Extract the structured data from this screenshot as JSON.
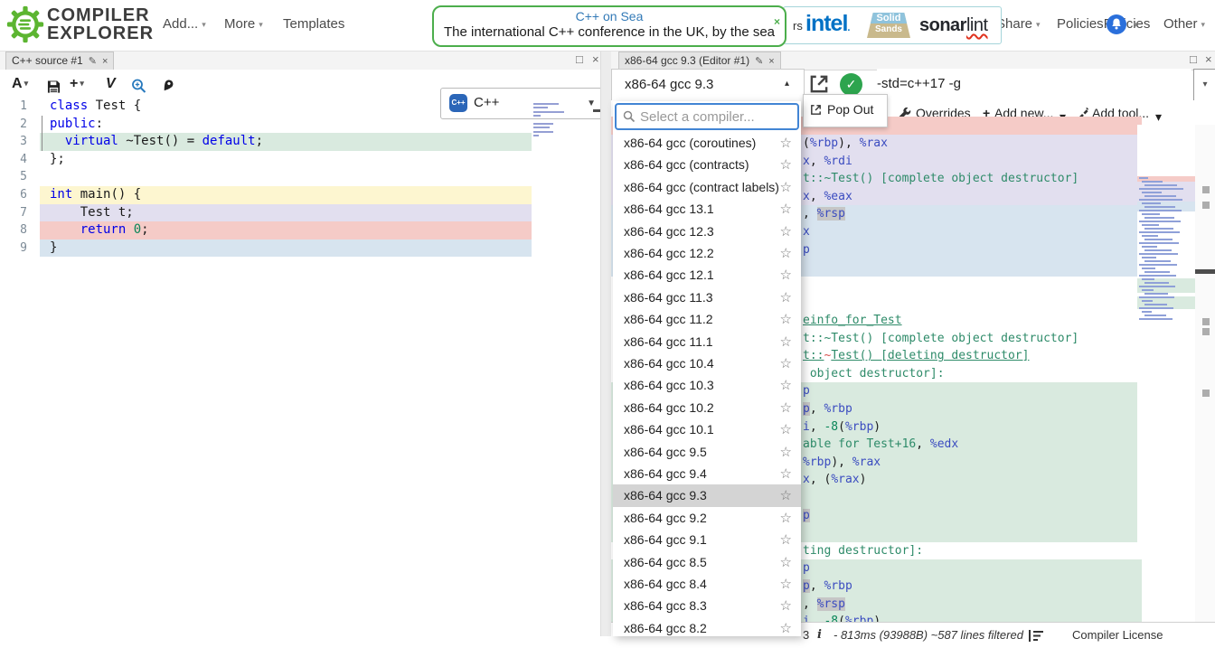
{
  "icons": {
    "caret_down": "▾",
    "caret_up": "▴",
    "caret_solid": "▼",
    "close": "×",
    "maximize": "□",
    "edit": "✎",
    "star": "☆",
    "check": "✓",
    "plus": "+",
    "info": "i",
    "font": "A",
    "vim": "V"
  },
  "nav": {
    "logo_line1": "COMPILER",
    "logo_line2": "EXPLORER",
    "menu_add": "Add...",
    "menu_more": "More",
    "menu_templates": "Templates",
    "banner": {
      "title": "C++ on Sea",
      "subtitle": "The international C++ conference in the UK, by the sea"
    },
    "sponsors": {
      "label_fragment": "rs",
      "intel": "intel",
      "intel_dot": ".",
      "solid_top": "Solid",
      "solid_bottom": "Sands",
      "sonar_bold": "sonar",
      "sonar_light": "lint"
    },
    "menu_share": "Share",
    "menu_policies": "Policies",
    "menu_other": "Other"
  },
  "source_pane": {
    "tab_title": "C++ source #1",
    "language": "C++",
    "language_logo": "C++",
    "lines": [
      {
        "bg": null,
        "tokens": [
          {
            "t": "class",
            "c": "kw"
          },
          {
            "t": " Test {",
            "c": "pl"
          }
        ]
      },
      {
        "bg": null,
        "tokens": [
          {
            "t": "public",
            "c": "kw"
          },
          {
            "t": ":",
            "c": "pl"
          }
        ]
      },
      {
        "bg": "g",
        "tokens": [
          {
            "t": "  ",
            "c": "pl"
          },
          {
            "t": "virtual",
            "c": "kw"
          },
          {
            "t": " ~Test() = ",
            "c": "pl"
          },
          {
            "t": "default",
            "c": "kw"
          },
          {
            "t": ";",
            "c": "pl"
          }
        ]
      },
      {
        "bg": null,
        "tokens": [
          {
            "t": "};",
            "c": "pl"
          }
        ]
      },
      {
        "bg": null,
        "tokens": []
      },
      {
        "bg": "y",
        "tokens": [
          {
            "t": "int",
            "c": "kw"
          },
          {
            "t": " main() {",
            "c": "pl"
          }
        ]
      },
      {
        "bg": "l",
        "tokens": [
          {
            "t": "    Test t;",
            "c": "pl"
          }
        ]
      },
      {
        "bg": "r",
        "tokens": [
          {
            "t": "    ",
            "c": "pl"
          },
          {
            "t": "return",
            "c": "kw"
          },
          {
            "t": " ",
            "c": "pl"
          },
          {
            "t": "0",
            "c": "num"
          },
          {
            "t": ";",
            "c": "pl"
          }
        ]
      },
      {
        "bg": "b",
        "tokens": [
          {
            "t": "}",
            "c": "pl"
          }
        ]
      }
    ]
  },
  "compiler_pane": {
    "tab_title": "x86-64 gcc 9.3 (Editor #1)",
    "compiler_value": "x86-64 gcc 9.3",
    "options_value": "-std=c++17 -g",
    "popout_label": "Pop Out",
    "toolbar": {
      "overrides": "Overrides",
      "add_new": "Add new...",
      "add_tool": "Add tool..."
    },
    "status": {
      "name_fragment": "3",
      "timing": "- 813ms (93988B) ~587 lines filtered",
      "license": "Compiler License"
    },
    "asm_lines": [
      {
        "bg": "r",
        "parts": []
      },
      {
        "bg": "l",
        "parts": [
          {
            "t": "(",
            "c": "pl"
          },
          {
            "t": "%rbp",
            "c": "reg"
          },
          {
            "t": "), ",
            "c": "pl"
          },
          {
            "t": "%rax",
            "c": "reg"
          }
        ]
      },
      {
        "bg": "l",
        "parts": [
          {
            "t": "x",
            "c": "reg"
          },
          {
            "t": ", ",
            "c": "pl"
          },
          {
            "t": "%rdi",
            "c": "reg"
          }
        ]
      },
      {
        "bg": "l",
        "parts": [
          {
            "t": "t::~Test() [complete object destructor]",
            "c": "lbl"
          }
        ]
      },
      {
        "bg": "l",
        "parts": [
          {
            "t": "x",
            "c": "reg"
          },
          {
            "t": ", ",
            "c": "pl"
          },
          {
            "t": "%eax",
            "c": "reg"
          }
        ]
      },
      {
        "bg": "b",
        "parts": [
          {
            "t": ", ",
            "c": "pl"
          },
          {
            "t": "%rsp",
            "c": "reg",
            "sel": true
          }
        ]
      },
      {
        "bg": "b",
        "parts": [
          {
            "t": "x",
            "c": "reg"
          }
        ]
      },
      {
        "bg": "b",
        "parts": [
          {
            "t": "p",
            "c": "reg"
          }
        ]
      },
      {
        "bg": "b",
        "parts": []
      },
      {
        "bg": null,
        "parts": []
      },
      {
        "bg": null,
        "parts": []
      },
      {
        "bg": null,
        "und": true,
        "parts": [
          {
            "t": "einfo_for_Test",
            "c": "lbl"
          }
        ]
      },
      {
        "bg": null,
        "parts": [
          {
            "t": "t::~Test() [complete object destructor]",
            "c": "lbl"
          }
        ]
      },
      {
        "bg": null,
        "und": true,
        "parts": [
          {
            "t": "t::",
            "c": "lbl"
          },
          {
            "t": "~",
            "c": "tld"
          },
          {
            "t": "Test() [deleting destructor]",
            "c": "lbl"
          }
        ]
      },
      {
        "bg": null,
        "parts": [
          {
            "t": " object destructor]:",
            "c": "lbl"
          }
        ]
      },
      {
        "bg": "g",
        "parts": [
          {
            "t": "p",
            "c": "reg"
          }
        ]
      },
      {
        "bg": "g",
        "parts": [
          {
            "t": "p",
            "c": "reg",
            "sel": true
          },
          {
            "t": ", ",
            "c": "pl"
          },
          {
            "t": "%rbp",
            "c": "reg"
          }
        ]
      },
      {
        "bg": "g",
        "parts": [
          {
            "t": "i",
            "c": "reg"
          },
          {
            "t": ", ",
            "c": "pl"
          },
          {
            "t": "-8",
            "c": "num"
          },
          {
            "t": "(",
            "c": "pl"
          },
          {
            "t": "%rbp",
            "c": "reg"
          },
          {
            "t": ")",
            "c": "pl"
          }
        ]
      },
      {
        "bg": "g",
        "parts": [
          {
            "t": "able for Test+16",
            "c": "lbl"
          },
          {
            "t": ", ",
            "c": "pl"
          },
          {
            "t": "%edx",
            "c": "reg"
          }
        ]
      },
      {
        "bg": "g",
        "parts": [
          {
            "t": "%rbp",
            "c": "reg"
          },
          {
            "t": "), ",
            "c": "pl"
          },
          {
            "t": "%rax",
            "c": "reg"
          }
        ]
      },
      {
        "bg": "g",
        "parts": [
          {
            "t": "x",
            "c": "reg"
          },
          {
            "t": ", (",
            "c": "pl"
          },
          {
            "t": "%rax",
            "c": "reg"
          },
          {
            "t": ")",
            "c": "pl"
          }
        ]
      },
      {
        "bg": "g",
        "parts": []
      },
      {
        "bg": "g",
        "parts": [
          {
            "t": "p",
            "c": "reg",
            "sel": true
          }
        ]
      },
      {
        "bg": "g",
        "parts": []
      },
      {
        "bg": null,
        "parts": [
          {
            "t": "ting destructor]:",
            "c": "lbl"
          }
        ]
      },
      {
        "bg": "g",
        "parts": [
          {
            "t": "p",
            "c": "reg"
          }
        ]
      },
      {
        "bg": "g",
        "parts": [
          {
            "t": "p",
            "c": "reg",
            "sel": true
          },
          {
            "t": ", ",
            "c": "pl"
          },
          {
            "t": "%rbp",
            "c": "reg"
          }
        ]
      },
      {
        "bg": "g",
        "parts": [
          {
            "t": ", ",
            "c": "pl"
          },
          {
            "t": "%rsp",
            "c": "reg",
            "sel": true
          }
        ]
      },
      {
        "bg": "g",
        "parts": [
          {
            "t": "i",
            "c": "reg"
          },
          {
            "t": ", ",
            "c": "pl"
          },
          {
            "t": "-8",
            "c": "num"
          },
          {
            "t": "(",
            "c": "pl"
          },
          {
            "t": "%rbp",
            "c": "reg"
          },
          {
            "t": ")",
            "c": "pl"
          }
        ]
      }
    ]
  },
  "compiler_dropdown": {
    "placeholder": "Select a compiler...",
    "selected": "x86-64 gcc 9.3",
    "items": [
      "x86-64 gcc (coroutines)",
      "x86-64 gcc (contracts)",
      "x86-64 gcc (contract labels)",
      "x86-64 gcc 13.1",
      "x86-64 gcc 12.3",
      "x86-64 gcc 12.2",
      "x86-64 gcc 12.1",
      "x86-64 gcc 11.3",
      "x86-64 gcc 11.2",
      "x86-64 gcc 11.1",
      "x86-64 gcc 10.4",
      "x86-64 gcc 10.3",
      "x86-64 gcc 10.2",
      "x86-64 gcc 10.1",
      "x86-64 gcc 9.5",
      "x86-64 gcc 9.4",
      "x86-64 gcc 9.3",
      "x86-64 gcc 9.2",
      "x86-64 gcc 9.1",
      "x86-64 gcc 8.5",
      "x86-64 gcc 8.4",
      "x86-64 gcc 8.3",
      "x86-64 gcc 8.2"
    ]
  }
}
